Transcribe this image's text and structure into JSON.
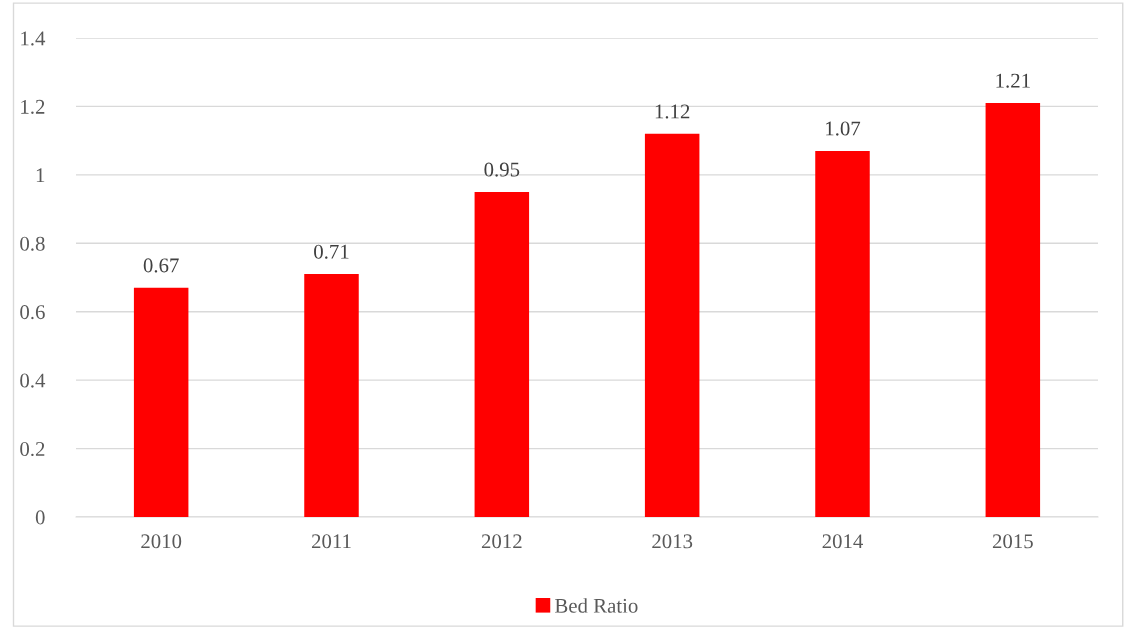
{
  "chart_data": {
    "type": "bar",
    "categories": [
      "2010",
      "2011",
      "2012",
      "2013",
      "2014",
      "2015"
    ],
    "series": [
      {
        "name": "Bed Ratio",
        "color": "#ff0000",
        "values": [
          0.67,
          0.71,
          0.95,
          1.12,
          1.07,
          1.21
        ]
      }
    ],
    "ylim": [
      0,
      1.4
    ],
    "yticks": [
      0,
      0.2,
      0.4,
      0.6,
      0.8,
      1,
      1.2,
      1.4
    ],
    "grid": "y",
    "legend": "bottom",
    "data_labels": true
  }
}
